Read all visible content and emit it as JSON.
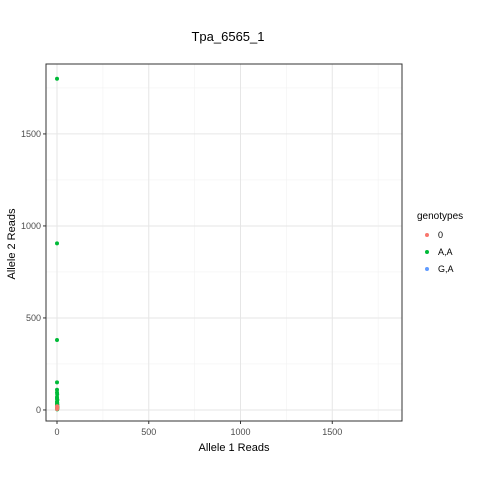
{
  "chart_data": {
    "type": "scatter",
    "title": "Tpa_6565_1",
    "xlabel": "Allele 1 Reads",
    "ylabel": "Allele 2 Reads",
    "xlim": [
      -60,
      1880
    ],
    "ylim": [
      -60,
      1880
    ],
    "x_ticks": [
      0,
      500,
      1000,
      1500
    ],
    "y_ticks": [
      0,
      500,
      1000,
      1500
    ],
    "grid": true,
    "legend": {
      "title": "genotypes",
      "position": "right",
      "entries": [
        "0",
        "A,A",
        "G,A"
      ]
    },
    "series": [
      {
        "name": "0",
        "color": "#F8766D",
        "points": [
          [
            0,
            5
          ],
          [
            2,
            12
          ],
          [
            1,
            20
          ],
          [
            0,
            18
          ]
        ]
      },
      {
        "name": "A,A",
        "color": "#00BA38",
        "points": [
          [
            0,
            1800
          ],
          [
            0,
            905
          ],
          [
            0,
            380
          ],
          [
            0,
            150
          ],
          [
            0,
            110
          ],
          [
            0,
            95
          ],
          [
            1,
            85
          ],
          [
            0,
            70
          ],
          [
            0,
            60
          ],
          [
            2,
            55
          ],
          [
            0,
            45
          ],
          [
            1,
            40
          ],
          [
            0,
            35
          ],
          [
            2,
            30
          ],
          [
            0,
            25
          ],
          [
            1,
            22
          ],
          [
            3,
            15
          ],
          [
            0,
            10
          ],
          [
            2,
            8
          ],
          [
            1,
            3
          ]
        ]
      },
      {
        "name": "G,A",
        "color": "#619CFF",
        "points": []
      }
    ]
  }
}
